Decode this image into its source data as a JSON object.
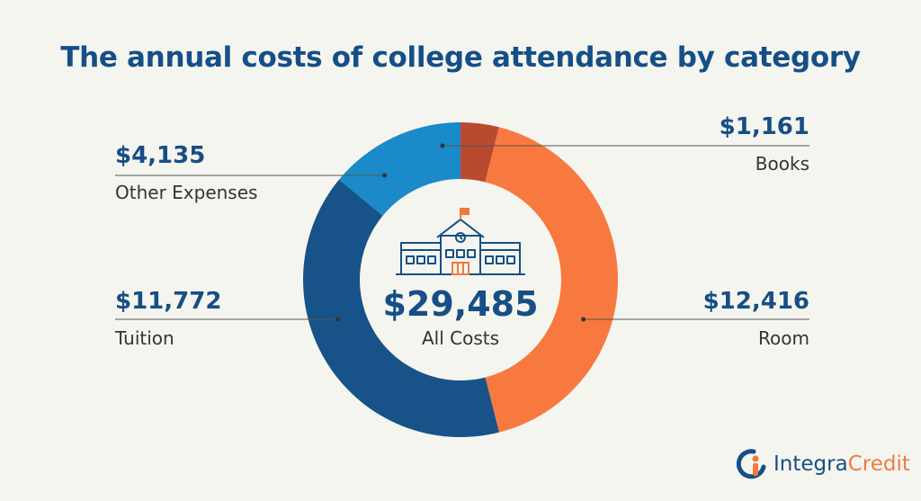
{
  "chart_data": {
    "type": "donut",
    "title": "The annual costs of college attendance by category",
    "total": {
      "value": "$29,485",
      "label": "All Costs"
    },
    "slices": [
      {
        "name": "Books",
        "value": 1161,
        "display": "$1,161",
        "color": "#b94a30"
      },
      {
        "name": "Room",
        "value": 12416,
        "display": "$12,416",
        "color": "#f7793f"
      },
      {
        "name": "Tuition",
        "value": 11772,
        "display": "$11,772",
        "color": "#175388"
      },
      {
        "name": "Other Expenses",
        "value": 4135,
        "display": "$4,135",
        "color": "#1a8bc8"
      }
    ]
  },
  "logo": {
    "part1": "Integra",
    "part2": "Credit"
  },
  "icons": {
    "center": "school-building-icon",
    "logo": "integra-credit-logo-icon"
  }
}
